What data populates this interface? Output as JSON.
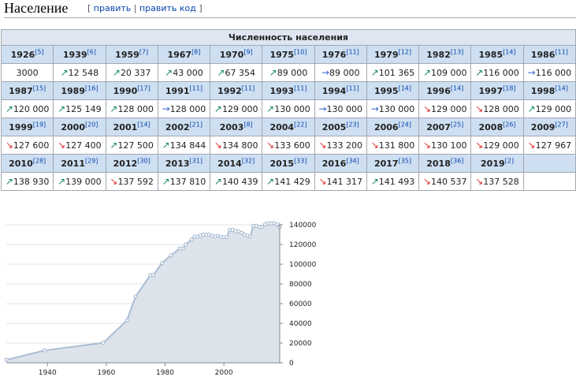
{
  "heading": {
    "title": "Население",
    "open": "[",
    "edit": "править",
    "sep": "|",
    "edit_code": "править код",
    "close": "]"
  },
  "table": {
    "caption": "Численность населения",
    "entries": [
      {
        "year": "1926",
        "ref": "[5]",
        "value": "3000",
        "trend": ""
      },
      {
        "year": "1939",
        "ref": "[6]",
        "value": "12 548",
        "trend": "up"
      },
      {
        "year": "1959",
        "ref": "[7]",
        "value": "20 337",
        "trend": "up"
      },
      {
        "year": "1967",
        "ref": "[8]",
        "value": "43 000",
        "trend": "up"
      },
      {
        "year": "1970",
        "ref": "[9]",
        "value": "67 354",
        "trend": "up"
      },
      {
        "year": "1975",
        "ref": "[10]",
        "value": "89 000",
        "trend": "up"
      },
      {
        "year": "1976",
        "ref": "[11]",
        "value": "89 000",
        "trend": "same"
      },
      {
        "year": "1979",
        "ref": "[12]",
        "value": "101 365",
        "trend": "up"
      },
      {
        "year": "1982",
        "ref": "[13]",
        "value": "109 000",
        "trend": "up"
      },
      {
        "year": "1985",
        "ref": "[14]",
        "value": "116 000",
        "trend": "up"
      },
      {
        "year": "1986",
        "ref": "[11]",
        "value": "116 000",
        "trend": "same"
      },
      {
        "year": "1987",
        "ref": "[15]",
        "value": "120 000",
        "trend": "up"
      },
      {
        "year": "1989",
        "ref": "[16]",
        "value": "125 149",
        "trend": "up"
      },
      {
        "year": "1990",
        "ref": "[17]",
        "value": "128 000",
        "trend": "up"
      },
      {
        "year": "1991",
        "ref": "[11]",
        "value": "128 000",
        "trend": "same"
      },
      {
        "year": "1992",
        "ref": "[11]",
        "value": "129 000",
        "trend": "up"
      },
      {
        "year": "1993",
        "ref": "[11]",
        "value": "130 000",
        "trend": "up"
      },
      {
        "year": "1994",
        "ref": "[11]",
        "value": "130 000",
        "trend": "same"
      },
      {
        "year": "1995",
        "ref": "[14]",
        "value": "130 000",
        "trend": "same"
      },
      {
        "year": "1996",
        "ref": "[14]",
        "value": "129 000",
        "trend": "down"
      },
      {
        "year": "1997",
        "ref": "[18]",
        "value": "128 000",
        "trend": "down"
      },
      {
        "year": "1998",
        "ref": "[14]",
        "value": "129 000",
        "trend": "up"
      },
      {
        "year": "1999",
        "ref": "[19]",
        "value": "127 600",
        "trend": "down"
      },
      {
        "year": "2000",
        "ref": "[20]",
        "value": "127 400",
        "trend": "down"
      },
      {
        "year": "2001",
        "ref": "[14]",
        "value": "127 500",
        "trend": "up"
      },
      {
        "year": "2002",
        "ref": "[21]",
        "value": "134 844",
        "trend": "up"
      },
      {
        "year": "2003",
        "ref": "[8]",
        "value": "134 800",
        "trend": "down"
      },
      {
        "year": "2004",
        "ref": "[22]",
        "value": "133 600",
        "trend": "down"
      },
      {
        "year": "2005",
        "ref": "[23]",
        "value": "133 200",
        "trend": "down"
      },
      {
        "year": "2006",
        "ref": "[24]",
        "value": "131 800",
        "trend": "down"
      },
      {
        "year": "2007",
        "ref": "[25]",
        "value": "130 100",
        "trend": "down"
      },
      {
        "year": "2008",
        "ref": "[26]",
        "value": "129 000",
        "trend": "down"
      },
      {
        "year": "2009",
        "ref": "[27]",
        "value": "127 967",
        "trend": "down"
      },
      {
        "year": "2010",
        "ref": "[28]",
        "value": "138 930",
        "trend": "up"
      },
      {
        "year": "2011",
        "ref": "[29]",
        "value": "139 000",
        "trend": "up"
      },
      {
        "year": "2012",
        "ref": "[30]",
        "value": "137 592",
        "trend": "down"
      },
      {
        "year": "2013",
        "ref": "[31]",
        "value": "137 810",
        "trend": "up"
      },
      {
        "year": "2014",
        "ref": "[32]",
        "value": "140 439",
        "trend": "up"
      },
      {
        "year": "2015",
        "ref": "[33]",
        "value": "141 429",
        "trend": "up"
      },
      {
        "year": "2016",
        "ref": "[34]",
        "value": "141 317",
        "trend": "down"
      },
      {
        "year": "2017",
        "ref": "[35]",
        "value": "141 493",
        "trend": "up"
      },
      {
        "year": "2018",
        "ref": "[36]",
        "value": "140 537",
        "trend": "down"
      },
      {
        "year": "2019",
        "ref": "[2]",
        "value": "137 528",
        "trend": "down"
      }
    ]
  },
  "arrows": {
    "up": "↗",
    "down": "↘",
    "same": "→"
  },
  "colors": {
    "up": "#14866d",
    "down": "#dd3333",
    "same": "#3366cc",
    "header": "#cedff2",
    "area_fill": "#dde3ea",
    "area_line": "#a9bdd4"
  },
  "chart_data": {
    "type": "area",
    "x": [
      1926,
      1939,
      1959,
      1967,
      1970,
      1975,
      1976,
      1979,
      1982,
      1985,
      1986,
      1987,
      1989,
      1990,
      1991,
      1992,
      1993,
      1994,
      1995,
      1996,
      1997,
      1998,
      1999,
      2000,
      2001,
      2002,
      2003,
      2004,
      2005,
      2006,
      2007,
      2008,
      2009,
      2010,
      2011,
      2012,
      2013,
      2014,
      2015,
      2016,
      2017,
      2018,
      2019
    ],
    "y": [
      3000,
      12548,
      20337,
      43000,
      67354,
      89000,
      89000,
      101365,
      109000,
      116000,
      116000,
      120000,
      125149,
      128000,
      128000,
      129000,
      130000,
      130000,
      130000,
      129000,
      128000,
      129000,
      127600,
      127400,
      127500,
      134844,
      134800,
      133600,
      133200,
      131800,
      130100,
      129000,
      127967,
      138930,
      139000,
      137592,
      137810,
      140439,
      141429,
      141317,
      141493,
      140537,
      137528
    ],
    "xticks": [
      1940,
      1960,
      1980,
      2000
    ],
    "yticks": [
      0,
      20000,
      40000,
      60000,
      80000,
      100000,
      120000,
      140000
    ],
    "xlim": [
      1926,
      2019
    ],
    "ylim": [
      0,
      140000
    ],
    "xlabel": "",
    "ylabel": "",
    "title": "",
    "grid": true
  }
}
